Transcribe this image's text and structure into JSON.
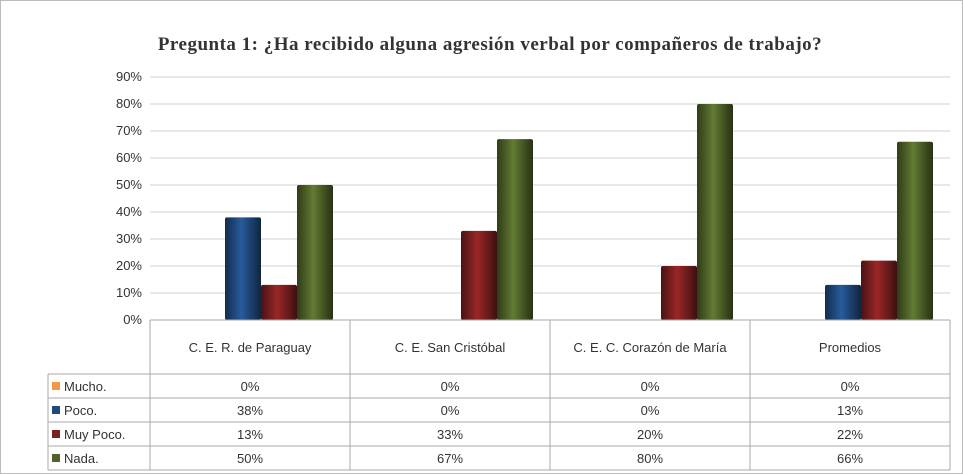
{
  "chart_data": {
    "type": "bar",
    "title": "Pregunta 1: ¿Ha recibido alguna agresión verbal por compañeros de trabajo?",
    "categories": [
      "C. E. R. de Paraguay",
      "C. E. San Cristóbal",
      "C. E. C. Corazón de María",
      "Promedios"
    ],
    "series": [
      {
        "name": "Mucho.",
        "color": "#f79646",
        "values": [
          0,
          0,
          0,
          0
        ],
        "value_labels": [
          "0%",
          "0%",
          "0%",
          "0%"
        ]
      },
      {
        "name": "Poco.",
        "color": "#1f497d",
        "values": [
          38,
          0,
          0,
          13
        ],
        "value_labels": [
          "38%",
          "0%",
          "0%",
          "13%"
        ]
      },
      {
        "name": "Muy Poco.",
        "color": "#7b1f1f",
        "values": [
          13,
          33,
          20,
          22
        ],
        "value_labels": [
          "13%",
          "33%",
          "20%",
          "22%"
        ]
      },
      {
        "name": "Nada.",
        "color": "#4f6228",
        "values": [
          50,
          67,
          80,
          66
        ],
        "value_labels": [
          "50%",
          "67%",
          "80%",
          "66%"
        ]
      }
    ],
    "ylim": [
      0,
      90
    ],
    "yticks": [
      {
        "value": 0,
        "label": "0%"
      },
      {
        "value": 10,
        "label": "10%"
      },
      {
        "value": 20,
        "label": "20%"
      },
      {
        "value": 30,
        "label": "30%"
      },
      {
        "value": 40,
        "label": "40%"
      },
      {
        "value": 50,
        "label": "50%"
      },
      {
        "value": 60,
        "label": "60%"
      },
      {
        "value": 70,
        "label": "70%"
      },
      {
        "value": 80,
        "label": "80%"
      },
      {
        "value": 90,
        "label": "90%"
      }
    ],
    "grid": true
  }
}
